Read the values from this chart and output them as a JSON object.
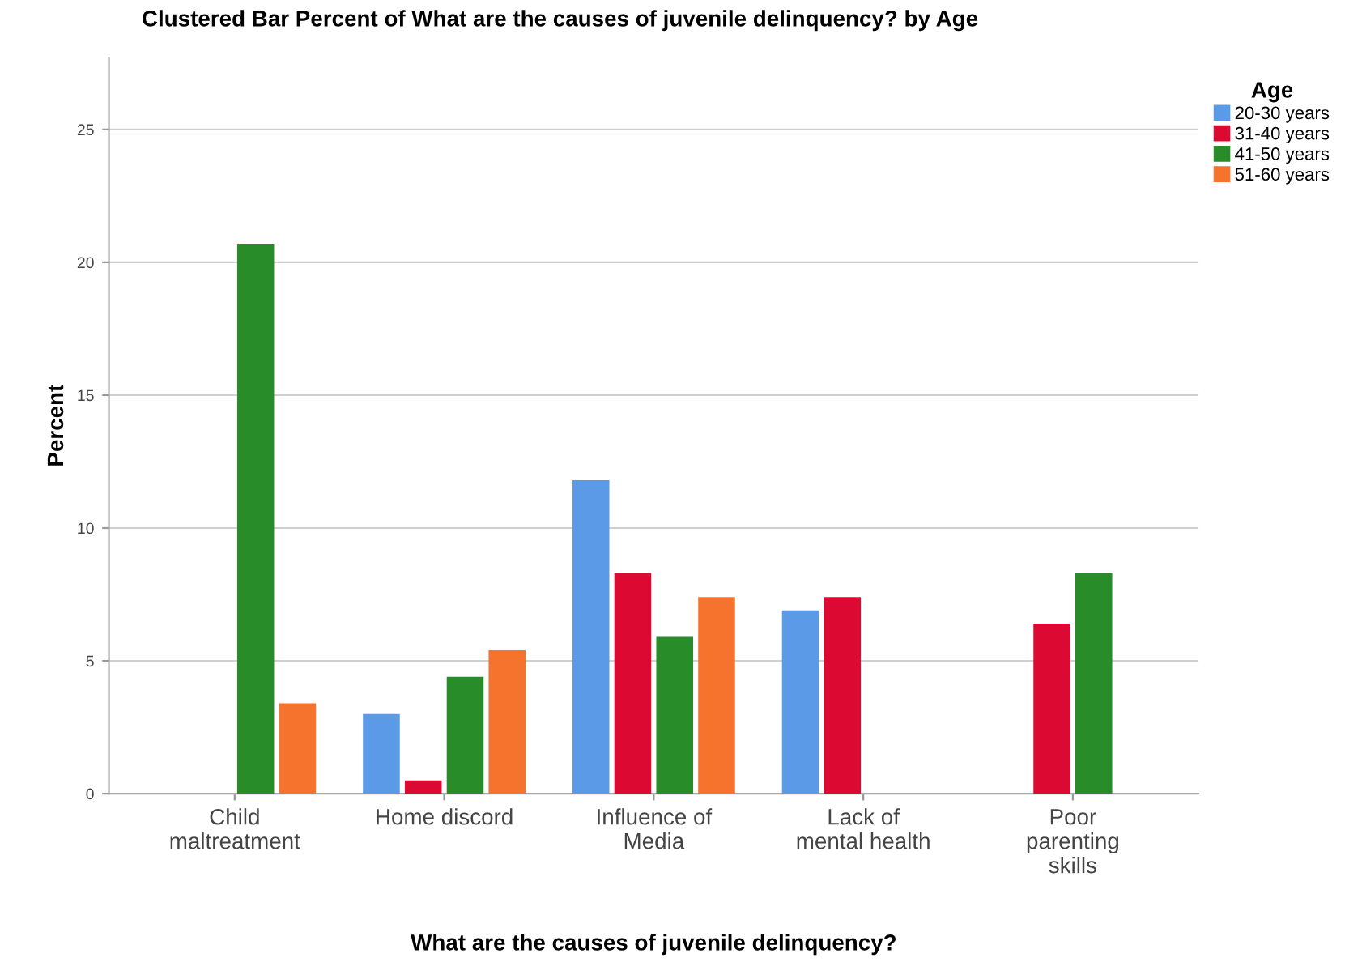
{
  "chart_data": {
    "type": "bar",
    "title": "Clustered Bar Percent of What are the causes of juvenile delinquency? by Age",
    "xlabel": "What are the causes of juvenile delinquency?",
    "ylabel": "Percent",
    "legend_title": "Age",
    "categories": [
      "Child\nmaltreatment",
      "Home discord",
      "Influence of\nMedia",
      "Lack of\nmental health",
      "Poor\nparenting\nskills"
    ],
    "series": [
      {
        "name": "20-30 years",
        "color": "#5a9ae6",
        "values": [
          null,
          3.0,
          11.8,
          6.9,
          null
        ]
      },
      {
        "name": "31-40 years",
        "color": "#dc0a32",
        "values": [
          null,
          0.5,
          8.3,
          7.4,
          6.4
        ]
      },
      {
        "name": "41-50 years",
        "color": "#288c28",
        "values": [
          20.7,
          4.4,
          5.9,
          null,
          8.3
        ]
      },
      {
        "name": "51-60 years",
        "color": "#f5732d",
        "values": [
          3.4,
          5.4,
          7.4,
          null,
          null
        ]
      }
    ],
    "ylim": [
      0,
      27.7
    ],
    "yticks": [
      0,
      5,
      10,
      15,
      20,
      25
    ],
    "grid": "y",
    "legend": "top right"
  }
}
